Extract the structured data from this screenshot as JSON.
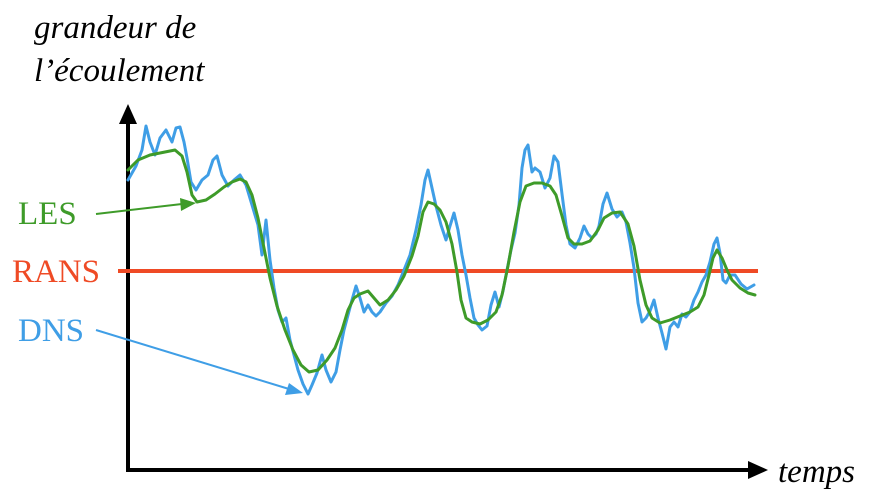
{
  "ylabel_line1": "grandeur de",
  "ylabel_line2": "l’écoulement",
  "xlabel": "temps",
  "series": [
    {
      "name": "LES",
      "color": "#3e9b29"
    },
    {
      "name": "RANS",
      "color": "#ef4a25"
    },
    {
      "name": "DNS",
      "color": "#3f9ee6"
    }
  ],
  "colors": {
    "axis": "#000000"
  }
}
